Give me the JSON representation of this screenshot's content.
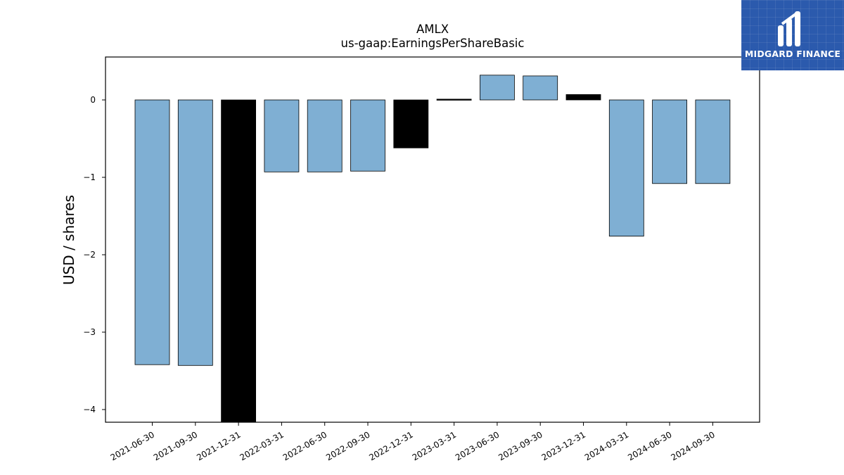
{
  "brand": {
    "name": "MIDGARD FINANCE",
    "bg_color": "#2b5aad"
  },
  "chart_data": {
    "type": "bar",
    "title": "AMLX",
    "subtitle": "us-gaap:EarningsPerShareBasic",
    "ylabel": "USD / shares",
    "xlabel": "",
    "ylim": [
      -4.17,
      0.55
    ],
    "yticks": [
      0,
      -1,
      -2,
      -3,
      -4
    ],
    "grid": false,
    "categories": [
      "2021-06-30",
      "2021-09-30",
      "2021-12-31",
      "2022-03-31",
      "2022-06-30",
      "2022-09-30",
      "2022-12-31",
      "2023-03-31",
      "2023-06-30",
      "2023-09-30",
      "2023-12-31",
      "2024-03-31",
      "2024-06-30",
      "2024-09-30"
    ],
    "values": [
      -3.42,
      -3.43,
      -4.17,
      -0.93,
      -0.93,
      -0.92,
      -0.62,
      0.01,
      0.32,
      0.31,
      0.07,
      -1.76,
      -1.08,
      -1.08
    ],
    "bar_colors": [
      "#7fafd3",
      "#7fafd3",
      "#000000",
      "#7fafd3",
      "#7fafd3",
      "#7fafd3",
      "#000000",
      "#000000",
      "#7fafd3",
      "#7fafd3",
      "#000000",
      "#7fafd3",
      "#7fafd3",
      "#7fafd3"
    ]
  }
}
